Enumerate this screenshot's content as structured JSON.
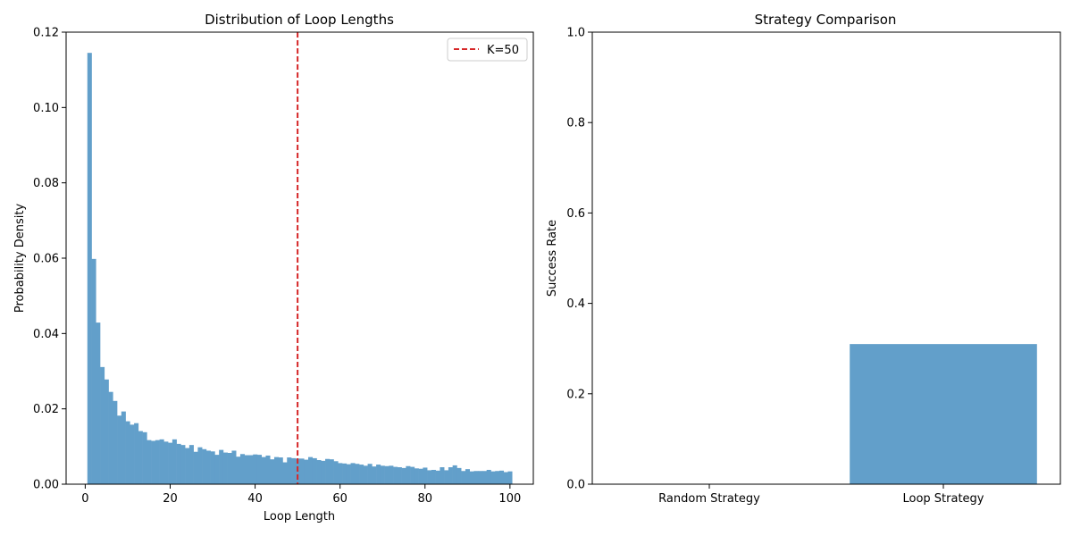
{
  "colors": {
    "bar": "#629fca",
    "reference_line": "#d62728",
    "axis": "#000000"
  },
  "chart_data": [
    {
      "type": "bar",
      "title": "Distribution of Loop Lengths",
      "xlabel": "Loop Length",
      "ylabel": "Probability Density",
      "xlim": [
        -4.5,
        105.5
      ],
      "ylim": [
        0,
        0.12
      ],
      "xticks": [
        0,
        20,
        40,
        60,
        80,
        100
      ],
      "xtick_labels": [
        "0",
        "20",
        "40",
        "60",
        "80",
        "100"
      ],
      "yticks": [
        0,
        0.02,
        0.04,
        0.06,
        0.08,
        0.1,
        0.12
      ],
      "ytick_labels": [
        "0.00",
        "0.02",
        "0.04",
        "0.06",
        "0.08",
        "0.10",
        "0.12"
      ],
      "bin_start": 0.5,
      "bin_width": 1,
      "values": [
        0.1145,
        0.0598,
        0.0429,
        0.0311,
        0.0278,
        0.0245,
        0.0221,
        0.0182,
        0.0193,
        0.0167,
        0.0158,
        0.0162,
        0.0141,
        0.0138,
        0.0117,
        0.0115,
        0.0117,
        0.0119,
        0.0113,
        0.011,
        0.0119,
        0.0107,
        0.0104,
        0.0096,
        0.0104,
        0.0086,
        0.0098,
        0.0093,
        0.0089,
        0.0087,
        0.0078,
        0.0091,
        0.0084,
        0.0083,
        0.0089,
        0.0073,
        0.008,
        0.0077,
        0.0077,
        0.0079,
        0.0078,
        0.0072,
        0.0076,
        0.0066,
        0.0072,
        0.0071,
        0.0058,
        0.0071,
        0.0069,
        0.0068,
        0.0068,
        0.0065,
        0.0072,
        0.0069,
        0.0064,
        0.0062,
        0.0067,
        0.0066,
        0.0061,
        0.0056,
        0.0055,
        0.0053,
        0.0056,
        0.0054,
        0.0052,
        0.0049,
        0.0054,
        0.0047,
        0.0052,
        0.0049,
        0.0048,
        0.0049,
        0.0046,
        0.0045,
        0.0043,
        0.0048,
        0.0046,
        0.0042,
        0.0041,
        0.0044,
        0.0037,
        0.0038,
        0.0036,
        0.0045,
        0.0037,
        0.0045,
        0.005,
        0.0043,
        0.0035,
        0.004,
        0.0034,
        0.0035,
        0.0035,
        0.0035,
        0.0038,
        0.0034,
        0.0035,
        0.0036,
        0.0032,
        0.0034
      ],
      "reference_line": {
        "x": 50,
        "label": "K=50",
        "style": "dashed"
      },
      "legend": {
        "entries": [
          "K=50"
        ],
        "placement": "top-right"
      },
      "grid": false
    },
    {
      "type": "bar",
      "title": "Strategy Comparison",
      "xlabel": "",
      "ylabel": "Success Rate",
      "categories": [
        "Random Strategy",
        "Loop Strategy"
      ],
      "values": [
        0.0,
        0.31
      ],
      "ylim": [
        0,
        1.0
      ],
      "yticks": [
        0,
        0.2,
        0.4,
        0.6,
        0.8,
        1.0
      ],
      "ytick_labels": [
        "0.0",
        "0.2",
        "0.4",
        "0.6",
        "0.8",
        "1.0"
      ],
      "grid": false
    }
  ]
}
